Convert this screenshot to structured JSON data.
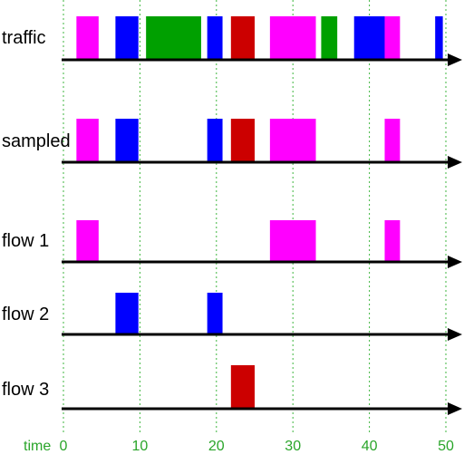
{
  "axis": {
    "label": "time",
    "min": 0,
    "max": 50,
    "ticks": [
      0,
      10,
      20,
      30,
      40,
      50
    ]
  },
  "colors": {
    "magenta": "#ff00ff",
    "blue": "#0000ff",
    "green": "#00a000",
    "red": "#cc0000",
    "grid": "#3fb63f",
    "axis": "#000000"
  },
  "rows": [
    {
      "label": "traffic",
      "segments": [
        {
          "start": 1.7,
          "end": 4.6,
          "color": "magenta"
        },
        {
          "start": 6.8,
          "end": 9.8,
          "color": "blue"
        },
        {
          "start": 10.8,
          "end": 18.0,
          "color": "green"
        },
        {
          "start": 18.8,
          "end": 20.8,
          "color": "blue"
        },
        {
          "start": 21.9,
          "end": 25.0,
          "color": "red"
        },
        {
          "start": 27.0,
          "end": 33.0,
          "color": "magenta"
        },
        {
          "start": 33.7,
          "end": 35.8,
          "color": "green"
        },
        {
          "start": 38.0,
          "end": 42.0,
          "color": "blue"
        },
        {
          "start": 42.0,
          "end": 44.0,
          "color": "magenta"
        },
        {
          "start": 48.6,
          "end": 49.6,
          "color": "blue"
        }
      ]
    },
    {
      "label": "sampled",
      "segments": [
        {
          "start": 1.7,
          "end": 4.6,
          "color": "magenta"
        },
        {
          "start": 6.8,
          "end": 9.8,
          "color": "blue"
        },
        {
          "start": 18.8,
          "end": 20.8,
          "color": "blue"
        },
        {
          "start": 21.9,
          "end": 25.0,
          "color": "red"
        },
        {
          "start": 27.0,
          "end": 33.0,
          "color": "magenta"
        },
        {
          "start": 42.0,
          "end": 44.0,
          "color": "magenta"
        }
      ]
    },
    {
      "label": "flow 1",
      "segments": [
        {
          "start": 1.7,
          "end": 4.6,
          "color": "magenta"
        },
        {
          "start": 27.0,
          "end": 33.0,
          "color": "magenta"
        },
        {
          "start": 42.0,
          "end": 44.0,
          "color": "magenta"
        }
      ]
    },
    {
      "label": "flow 2",
      "segments": [
        {
          "start": 6.8,
          "end": 9.8,
          "color": "blue"
        },
        {
          "start": 18.8,
          "end": 20.8,
          "color": "blue"
        }
      ]
    },
    {
      "label": "flow 3",
      "segments": [
        {
          "start": 21.9,
          "end": 25.0,
          "color": "red"
        }
      ]
    }
  ]
}
